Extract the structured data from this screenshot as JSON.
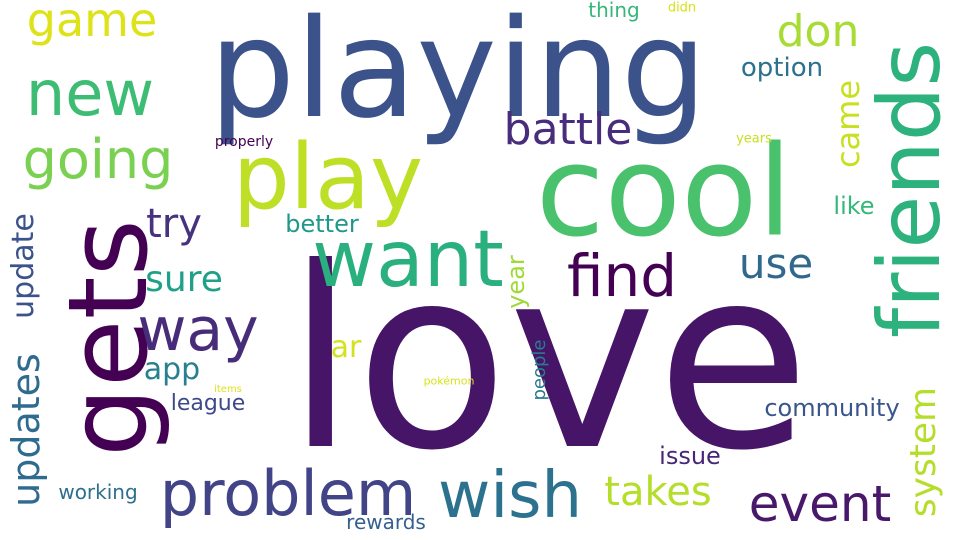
{
  "words": [
    {
      "text": "love",
      "color": "#471567"
    },
    {
      "text": "playing",
      "color": "#3b528b"
    },
    {
      "text": "cool",
      "color": "#4ac16d"
    },
    {
      "text": "gets",
      "color": "#440154"
    },
    {
      "text": "friends",
      "color": "#2db27d"
    },
    {
      "text": "play",
      "color": "#bddf26"
    },
    {
      "text": "want",
      "color": "#2ab07f"
    },
    {
      "text": "wish",
      "color": "#2c728e"
    },
    {
      "text": "problem",
      "color": "#414487"
    },
    {
      "text": "way",
      "color": "#472c7a"
    },
    {
      "text": "new",
      "color": "#3dbc74"
    },
    {
      "text": "find",
      "color": "#440154"
    },
    {
      "text": "going",
      "color": "#7ad151"
    },
    {
      "text": "event",
      "color": "#48186a"
    },
    {
      "text": "updates",
      "color": "#2f6b8e"
    },
    {
      "text": "battle",
      "color": "#472d7b"
    },
    {
      "text": "game",
      "color": "#dde318"
    },
    {
      "text": "don",
      "color": "#a8db34"
    },
    {
      "text": "takes",
      "color": "#b5de2b"
    },
    {
      "text": "use",
      "color": "#31688e"
    },
    {
      "text": "system",
      "color": "#b5de2b"
    },
    {
      "text": "try",
      "color": "#46327e"
    },
    {
      "text": "update",
      "color": "#3b528b"
    },
    {
      "text": "came",
      "color": "#c8e020"
    },
    {
      "text": "sure",
      "color": "#1fa088"
    },
    {
      "text": "option",
      "color": "#2c728e"
    },
    {
      "text": "community",
      "color": "#39568c"
    },
    {
      "text": "ar",
      "color": "#d2e21b"
    },
    {
      "text": "app",
      "color": "#27808e"
    },
    {
      "text": "issue",
      "color": "#482677"
    },
    {
      "text": "like",
      "color": "#35b779"
    },
    {
      "text": "better",
      "color": "#1f988b"
    },
    {
      "text": "league",
      "color": "#3e4989"
    },
    {
      "text": "year",
      "color": "#a0da39"
    },
    {
      "text": "working",
      "color": "#2e6f8e"
    },
    {
      "text": "rewards",
      "color": "#355f8d"
    },
    {
      "text": "thing",
      "color": "#35b779"
    },
    {
      "text": "people",
      "color": "#297b8e"
    },
    {
      "text": "properly",
      "color": "#440154"
    },
    {
      "text": "didn",
      "color": "#d8e219"
    },
    {
      "text": "years",
      "color": "#c8e020"
    },
    {
      "text": "pokémon",
      "color": "#d8e219"
    },
    {
      "text": "items",
      "color": "#dde318"
    }
  ]
}
